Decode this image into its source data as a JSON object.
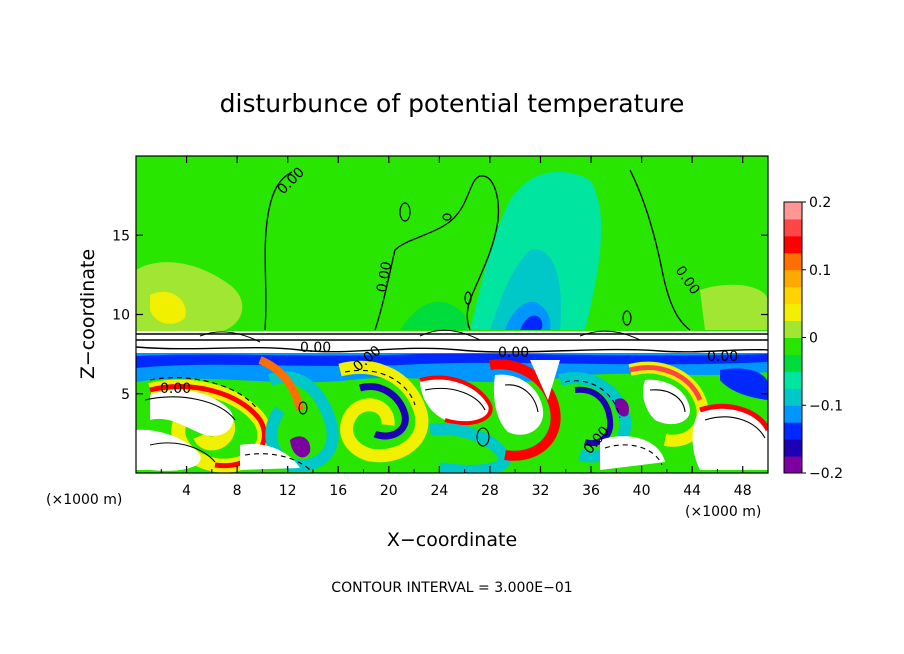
{
  "chart_data": {
    "type": "heatmap",
    "title": "disturbunce of potential temperature",
    "xlabel": "X−coordinate",
    "ylabel": "Z−coordinate",
    "x_unit_left": "(×1000 m)",
    "x_unit_right": "(×1000 m)",
    "footer": "CONTOUR INTERVAL = 3.000E−01",
    "xlim": [
      0,
      50
    ],
    "ylim": [
      0,
      20
    ],
    "x_ticks": [
      4,
      8,
      12,
      16,
      20,
      24,
      28,
      32,
      36,
      40,
      44,
      48
    ],
    "x_tick_labels": [
      "4",
      "8",
      "12",
      "16",
      "20",
      "24",
      "28",
      "32",
      "36",
      "40",
      "44",
      "48"
    ],
    "y_ticks": [
      5,
      10,
      15
    ],
    "y_tick_labels": [
      "5",
      "10",
      "15"
    ],
    "colorbar": {
      "range": [
        -0.2,
        0.2
      ],
      "tick_values": [
        0.2,
        0.1,
        0,
        -0.1,
        -0.2
      ],
      "tick_labels": [
        "0.2",
        "0.1",
        "0",
        "−0.1",
        "−0.2"
      ],
      "colors": [
        "#7d00a0",
        "#1e00b4",
        "#0028ff",
        "#0096ff",
        "#00c8c8",
        "#00e6a0",
        "#00dc3c",
        "#28e600",
        "#a0e632",
        "#f0f000",
        "#ffd200",
        "#ffaa00",
        "#ff6e00",
        "#ff0000",
        "#ff4646",
        "#ff9696"
      ]
    },
    "layer_boundary_z": 8.9,
    "contour_labels": [
      "0.00",
      "0.00",
      "0.00",
      "0.00",
      "0.00",
      "0.00",
      "0.00",
      "0.00",
      "0.00"
    ]
  }
}
